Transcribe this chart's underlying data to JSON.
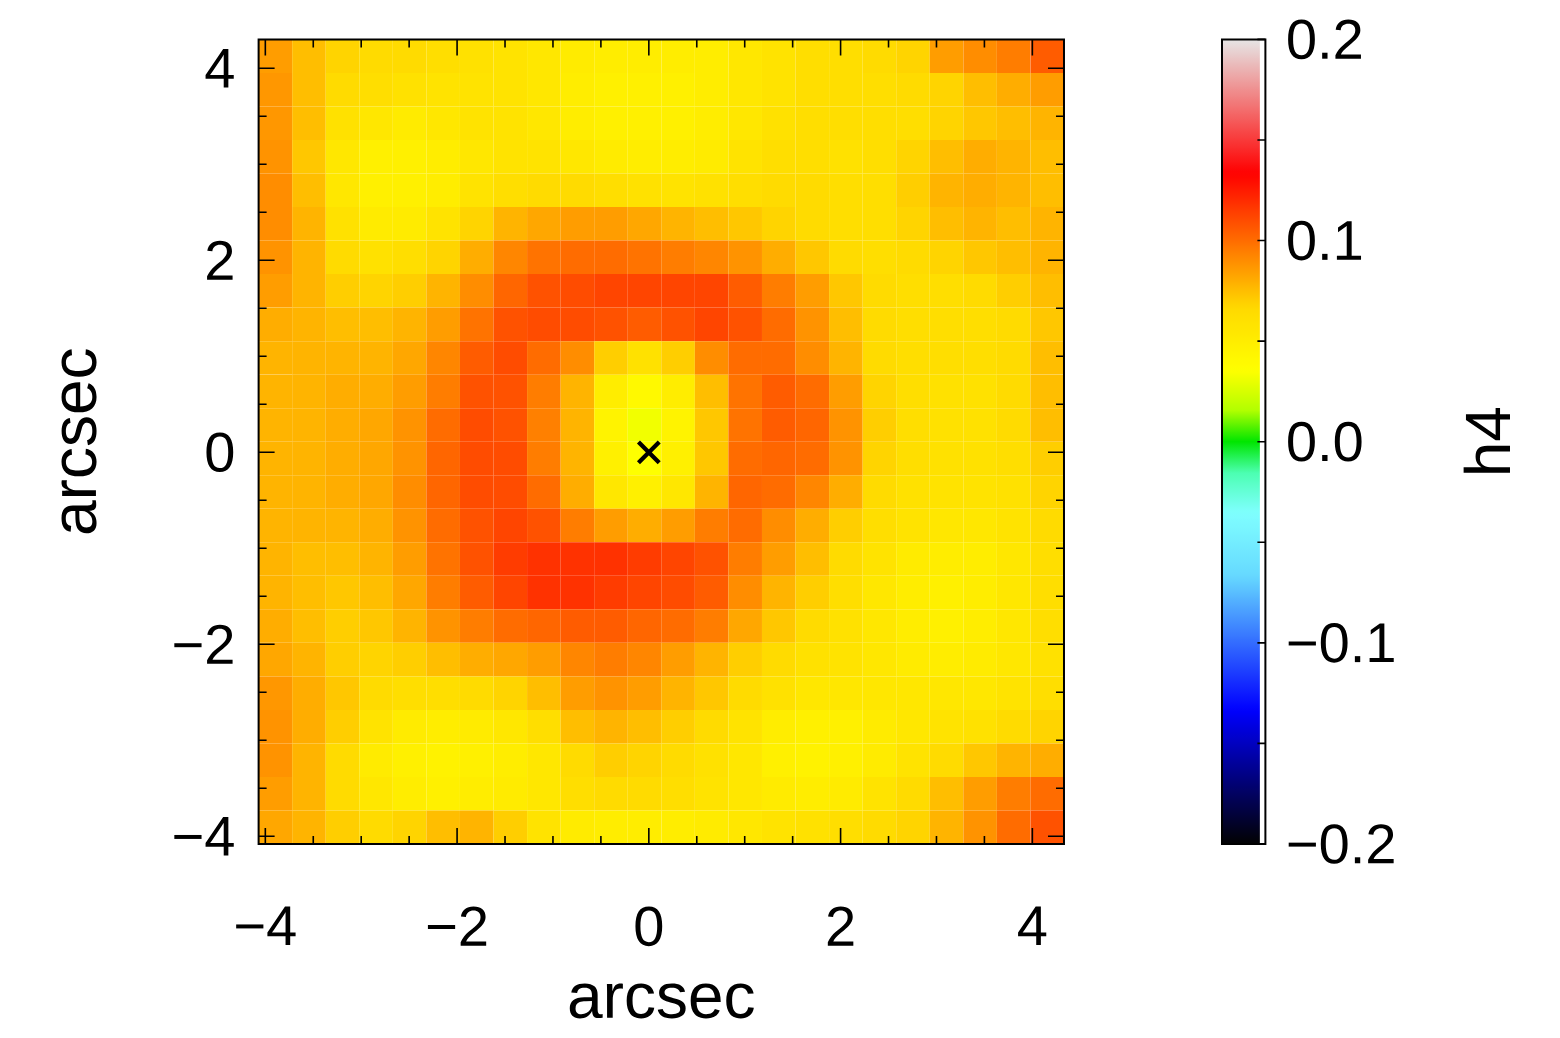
{
  "chart_data": {
    "type": "heatmap",
    "xlabel": "arcsec",
    "ylabel": "arcsec",
    "clabel": "h4",
    "xlim": [
      -4.07,
      4.33
    ],
    "ylim": [
      -4.08,
      4.3
    ],
    "xticks": [
      {
        "value": -4,
        "label": "−4"
      },
      {
        "value": -2,
        "label": "−2"
      },
      0,
      2,
      4
    ],
    "yticks": [
      {
        "value": -4,
        "label": "−4"
      },
      {
        "value": -2,
        "label": "−2"
      },
      0,
      2,
      4
    ],
    "clim": [
      -0.2,
      0.2
    ],
    "cticks": [
      {
        "value": -0.2,
        "label": "−0.2"
      },
      {
        "value": -0.1,
        "label": "−0.1"
      },
      {
        "value": 0,
        "label": "0.0"
      },
      0.1,
      0.2
    ],
    "cells": [
      [
        0.085,
        0.075,
        0.068,
        0.065,
        0.065,
        0.062,
        0.06,
        0.058,
        0.055,
        0.052,
        0.05,
        0.05,
        0.05,
        0.05,
        0.055,
        0.058,
        0.062,
        0.062,
        0.065,
        0.068,
        0.085,
        0.09,
        0.095,
        0.105
      ],
      [
        0.087,
        0.075,
        0.065,
        0.062,
        0.06,
        0.058,
        0.058,
        0.058,
        0.055,
        0.05,
        0.048,
        0.048,
        0.048,
        0.05,
        0.055,
        0.058,
        0.062,
        0.062,
        0.062,
        0.065,
        0.068,
        0.075,
        0.08,
        0.085
      ],
      [
        0.087,
        0.075,
        0.06,
        0.055,
        0.052,
        0.055,
        0.058,
        0.058,
        0.055,
        0.05,
        0.048,
        0.048,
        0.048,
        0.05,
        0.055,
        0.06,
        0.062,
        0.062,
        0.062,
        0.062,
        0.068,
        0.072,
        0.075,
        0.078
      ],
      [
        0.088,
        0.072,
        0.055,
        0.048,
        0.048,
        0.05,
        0.055,
        0.058,
        0.058,
        0.055,
        0.052,
        0.05,
        0.05,
        0.052,
        0.058,
        0.062,
        0.062,
        0.06,
        0.062,
        0.068,
        0.075,
        0.08,
        0.078,
        0.075
      ],
      [
        0.09,
        0.075,
        0.055,
        0.048,
        0.048,
        0.05,
        0.058,
        0.062,
        0.065,
        0.065,
        0.062,
        0.06,
        0.058,
        0.06,
        0.062,
        0.065,
        0.065,
        0.062,
        0.062,
        0.07,
        0.078,
        0.08,
        0.078,
        0.075
      ],
      [
        0.09,
        0.078,
        0.06,
        0.052,
        0.052,
        0.058,
        0.068,
        0.078,
        0.082,
        0.085,
        0.085,
        0.082,
        0.078,
        0.075,
        0.072,
        0.068,
        0.065,
        0.062,
        0.062,
        0.068,
        0.075,
        0.078,
        0.075,
        0.078
      ],
      [
        0.088,
        0.078,
        0.065,
        0.06,
        0.062,
        0.068,
        0.08,
        0.092,
        0.098,
        0.1,
        0.1,
        0.098,
        0.095,
        0.092,
        0.088,
        0.08,
        0.072,
        0.065,
        0.062,
        0.065,
        0.068,
        0.072,
        0.075,
        0.078
      ],
      [
        0.085,
        0.078,
        0.07,
        0.068,
        0.07,
        0.078,
        0.09,
        0.102,
        0.108,
        0.11,
        0.112,
        0.112,
        0.112,
        0.112,
        0.105,
        0.095,
        0.085,
        0.072,
        0.065,
        0.062,
        0.062,
        0.065,
        0.07,
        0.075
      ],
      [
        0.08,
        0.078,
        0.075,
        0.075,
        0.078,
        0.085,
        0.098,
        0.108,
        0.11,
        0.11,
        0.108,
        0.105,
        0.108,
        0.112,
        0.108,
        0.1,
        0.088,
        0.075,
        0.065,
        0.062,
        0.062,
        0.062,
        0.065,
        0.072
      ],
      [
        0.078,
        0.078,
        0.078,
        0.078,
        0.082,
        0.092,
        0.105,
        0.11,
        0.1,
        0.09,
        0.07,
        0.06,
        0.07,
        0.09,
        0.1,
        0.1,
        0.09,
        0.078,
        0.065,
        0.062,
        0.062,
        0.062,
        0.065,
        0.075
      ],
      [
        0.078,
        0.078,
        0.08,
        0.08,
        0.085,
        0.095,
        0.108,
        0.108,
        0.095,
        0.078,
        0.05,
        0.04,
        0.05,
        0.075,
        0.098,
        0.105,
        0.1,
        0.085,
        0.068,
        0.062,
        0.06,
        0.06,
        0.065,
        0.075
      ],
      [
        0.078,
        0.078,
        0.08,
        0.082,
        0.088,
        0.1,
        0.11,
        0.108,
        0.094,
        0.078,
        0.045,
        0.032,
        0.045,
        0.072,
        0.098,
        0.105,
        0.102,
        0.088,
        0.07,
        0.062,
        0.06,
        0.06,
        0.065,
        0.075
      ],
      [
        0.078,
        0.078,
        0.08,
        0.082,
        0.088,
        0.102,
        0.11,
        0.11,
        0.095,
        0.078,
        0.048,
        0.035,
        0.048,
        0.072,
        0.1,
        0.102,
        0.1,
        0.088,
        0.068,
        0.062,
        0.06,
        0.06,
        0.062,
        0.07
      ],
      [
        0.078,
        0.078,
        0.08,
        0.082,
        0.09,
        0.102,
        0.11,
        0.11,
        0.1,
        0.08,
        0.055,
        0.048,
        0.055,
        0.078,
        0.102,
        0.1,
        0.092,
        0.08,
        0.065,
        0.06,
        0.058,
        0.058,
        0.06,
        0.068
      ],
      [
        0.078,
        0.078,
        0.078,
        0.08,
        0.088,
        0.1,
        0.108,
        0.112,
        0.108,
        0.095,
        0.085,
        0.08,
        0.085,
        0.095,
        0.1,
        0.09,
        0.08,
        0.07,
        0.062,
        0.058,
        0.055,
        0.055,
        0.058,
        0.065
      ],
      [
        0.078,
        0.075,
        0.075,
        0.078,
        0.085,
        0.098,
        0.108,
        0.115,
        0.118,
        0.118,
        0.118,
        0.115,
        0.112,
        0.108,
        0.095,
        0.085,
        0.075,
        0.065,
        0.058,
        0.052,
        0.05,
        0.05,
        0.055,
        0.062
      ],
      [
        0.078,
        0.075,
        0.072,
        0.075,
        0.082,
        0.095,
        0.105,
        0.112,
        0.118,
        0.118,
        0.115,
        0.112,
        0.11,
        0.105,
        0.09,
        0.078,
        0.07,
        0.062,
        0.055,
        0.05,
        0.048,
        0.05,
        0.055,
        0.062
      ],
      [
        0.08,
        0.075,
        0.07,
        0.072,
        0.078,
        0.088,
        0.095,
        0.1,
        0.102,
        0.105,
        0.105,
        0.102,
        0.1,
        0.095,
        0.082,
        0.072,
        0.065,
        0.06,
        0.055,
        0.05,
        0.048,
        0.05,
        0.055,
        0.062
      ],
      [
        0.082,
        0.078,
        0.07,
        0.068,
        0.07,
        0.075,
        0.08,
        0.082,
        0.085,
        0.092,
        0.095,
        0.092,
        0.085,
        0.078,
        0.07,
        0.065,
        0.06,
        0.058,
        0.055,
        0.052,
        0.05,
        0.052,
        0.055,
        0.06
      ],
      [
        0.087,
        0.08,
        0.072,
        0.065,
        0.062,
        0.062,
        0.065,
        0.068,
        0.075,
        0.085,
        0.088,
        0.085,
        0.078,
        0.072,
        0.065,
        0.06,
        0.055,
        0.055,
        0.055,
        0.055,
        0.055,
        0.055,
        0.058,
        0.062
      ],
      [
        0.088,
        0.08,
        0.07,
        0.058,
        0.052,
        0.05,
        0.052,
        0.055,
        0.062,
        0.075,
        0.078,
        0.075,
        0.07,
        0.065,
        0.058,
        0.05,
        0.048,
        0.048,
        0.052,
        0.055,
        0.058,
        0.06,
        0.065,
        0.068
      ],
      [
        0.088,
        0.078,
        0.065,
        0.052,
        0.048,
        0.046,
        0.048,
        0.05,
        0.055,
        0.065,
        0.07,
        0.068,
        0.065,
        0.06,
        0.055,
        0.048,
        0.046,
        0.048,
        0.052,
        0.058,
        0.065,
        0.072,
        0.078,
        0.08
      ],
      [
        0.085,
        0.078,
        0.065,
        0.055,
        0.05,
        0.048,
        0.05,
        0.052,
        0.055,
        0.062,
        0.065,
        0.065,
        0.062,
        0.058,
        0.055,
        0.052,
        0.05,
        0.052,
        0.058,
        0.065,
        0.075,
        0.085,
        0.095,
        0.1
      ],
      [
        0.082,
        0.078,
        0.07,
        0.065,
        0.068,
        0.075,
        0.078,
        0.07,
        0.058,
        0.052,
        0.05,
        0.05,
        0.05,
        0.052,
        0.055,
        0.058,
        0.06,
        0.062,
        0.065,
        0.068,
        0.078,
        0.088,
        0.1,
        0.108
      ]
    ],
    "series": [
      {
        "type": "scatter",
        "x": [
          0
        ],
        "values": [
          0
        ],
        "color": "#000000"
      }
    ],
    "marker": "cross"
  }
}
